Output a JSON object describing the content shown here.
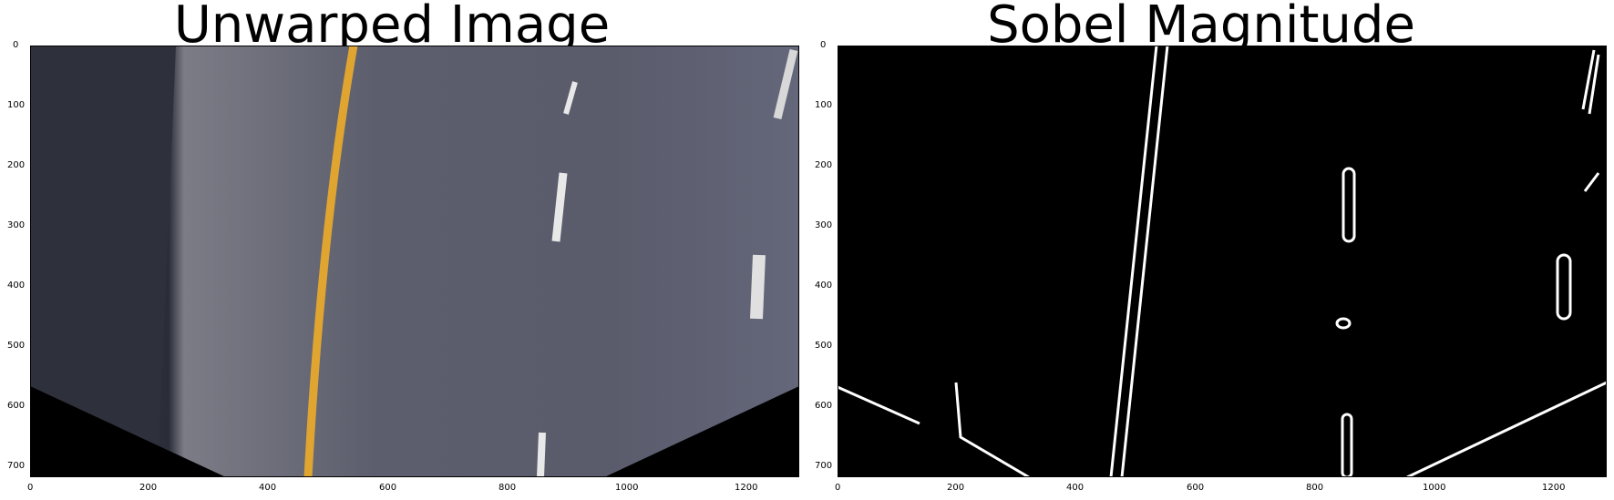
{
  "figures": [
    {
      "title": "Unwarped Image",
      "xticks": [
        "0",
        "200",
        "400",
        "600",
        "800",
        "1000",
        "1200"
      ],
      "yticks": [
        "0",
        "100",
        "200",
        "300",
        "400",
        "500",
        "600",
        "700"
      ]
    },
    {
      "title": "Sobel Magnitude",
      "xticks": [
        "0",
        "200",
        "400",
        "600",
        "800",
        "1000",
        "1200"
      ],
      "yticks": [
        "0",
        "100",
        "200",
        "300",
        "400",
        "500",
        "600",
        "700"
      ]
    }
  ],
  "colors": {
    "road": "#5f6170",
    "dark_road": "#2a2d38",
    "lane_yellow": "#e0a530",
    "lane_white": "#e8e8e8",
    "edge_background": "#000000",
    "edge_line": "#ffffff"
  }
}
